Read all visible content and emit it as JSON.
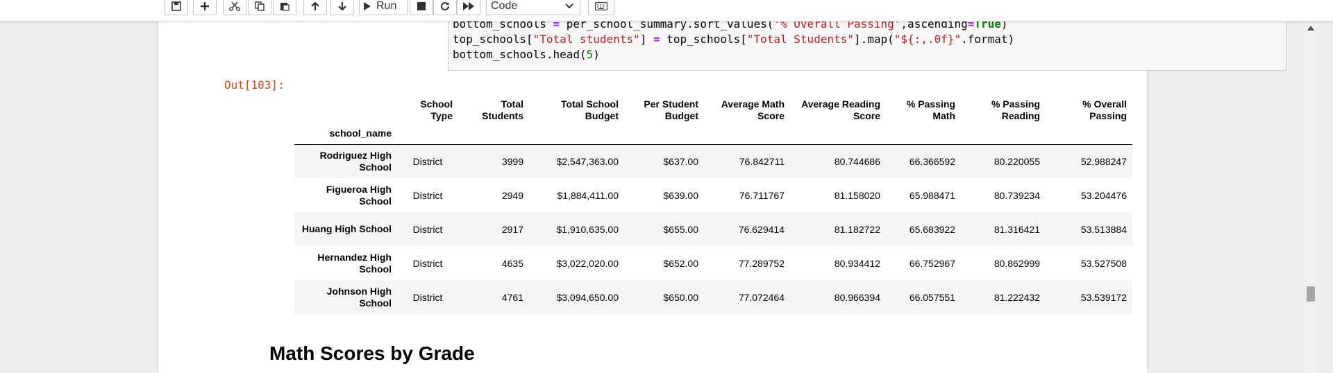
{
  "toolbar": {
    "run_label": "Run",
    "cell_type": "Code",
    "icons": [
      "save-icon",
      "add-icon",
      "cut-icon",
      "copy-icon",
      "paste-icon",
      "move-up-icon",
      "move-down-icon",
      "run-icon",
      "stop-icon",
      "restart-icon",
      "fast-forward-icon",
      "keyboard-icon"
    ]
  },
  "code": {
    "line0": "bottom_schools = per_school_summary.sort_values('% Overall Passing',ascending=True)",
    "line1": "top_schools[\"Total students\"] = top_schools[\"Total Students\"].map(\"${:,.0f}\".format)",
    "line2": "bottom_schools.head(5)"
  },
  "output_prompt": "Out[103]:",
  "table": {
    "index_name": "school_name",
    "columns": [
      "School Type",
      "Total Students",
      "Total School Budget",
      "Per Student Budget",
      "Average Math Score",
      "Average Reading Score",
      "% Passing Math",
      "% Passing Reading",
      "% Overall Passing"
    ],
    "rows": [
      {
        "name": "Rodriguez High School",
        "type": "District",
        "students": "3999",
        "budget": "$2,547,363.00",
        "per_student": "$637.00",
        "math": "76.842711",
        "reading": "80.744686",
        "pass_math": "66.366592",
        "pass_reading": "80.220055",
        "overall": "52.988247"
      },
      {
        "name": "Figueroa High School",
        "type": "District",
        "students": "2949",
        "budget": "$1,884,411.00",
        "per_student": "$639.00",
        "math": "76.711767",
        "reading": "81.158020",
        "pass_math": "65.988471",
        "pass_reading": "80.739234",
        "overall": "53.204476"
      },
      {
        "name": "Huang High School",
        "type": "District",
        "students": "2917",
        "budget": "$1,910,635.00",
        "per_student": "$655.00",
        "math": "76.629414",
        "reading": "81.182722",
        "pass_math": "65.683922",
        "pass_reading": "81.316421",
        "overall": "53.513884"
      },
      {
        "name": "Hernandez High School",
        "type": "District",
        "students": "4635",
        "budget": "$3,022,020.00",
        "per_student": "$652.00",
        "math": "77.289752",
        "reading": "80.934412",
        "pass_math": "66.752967",
        "pass_reading": "80.862999",
        "overall": "53.527508"
      },
      {
        "name": "Johnson High School",
        "type": "District",
        "students": "4761",
        "budget": "$3,094,650.00",
        "per_student": "$650.00",
        "math": "77.072464",
        "reading": "80.966394",
        "pass_math": "66.057551",
        "pass_reading": "81.222432",
        "overall": "53.539172"
      }
    ]
  },
  "section_heading": "Math Scores by Grade"
}
